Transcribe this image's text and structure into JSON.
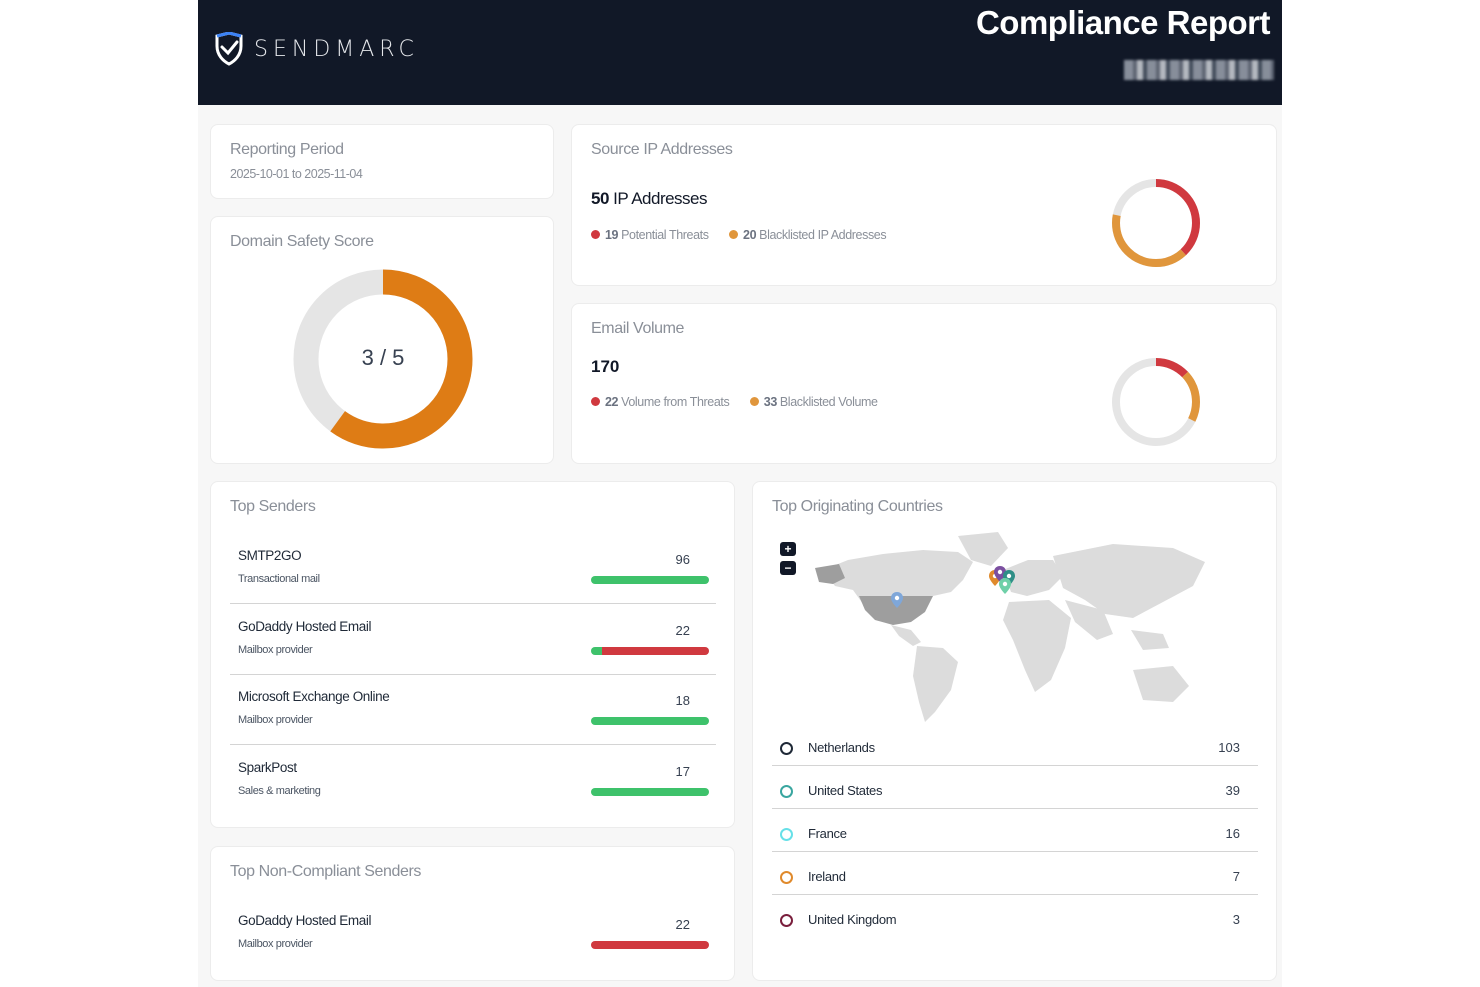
{
  "header": {
    "brand": "SENDMARC",
    "title": "Compliance Report"
  },
  "reporting_period": {
    "title": "Reporting Period",
    "range": "2025-10-01 to 2025-11-04"
  },
  "domain_safety": {
    "title": "Domain Safety Score",
    "score_text": "3 / 5",
    "score": 3,
    "max": 5
  },
  "source_ip": {
    "title": "Source IP Addresses",
    "total_number": "50",
    "total_label": "IP Addresses",
    "threats_count": "19",
    "threats_label": "Potential Threats",
    "blacklisted_count": "20",
    "blacklisted_label": "Blacklisted IP Addresses",
    "total": 50,
    "threats": 19,
    "blacklisted": 20
  },
  "email_volume": {
    "title": "Email Volume",
    "total_number": "170",
    "threats_count": "22",
    "threats_label": "Volume from Threats",
    "blacklisted_count": "33",
    "blacklisted_label": "Blacklisted Volume",
    "total": 170,
    "threats": 22,
    "blacklisted": 33
  },
  "top_senders": {
    "title": "Top Senders",
    "items": [
      {
        "name": "SMTP2GO",
        "type": "Transactional mail",
        "count": "96",
        "compliant_fraction": 1.0
      },
      {
        "name": "GoDaddy Hosted Email",
        "type": "Mailbox provider",
        "count": "22",
        "compliant_fraction": 0.09
      },
      {
        "name": "Microsoft Exchange Online",
        "type": "Mailbox provider",
        "count": "18",
        "compliant_fraction": 1.0
      },
      {
        "name": "SparkPost",
        "type": "Sales & marketing",
        "count": "17",
        "compliant_fraction": 1.0
      }
    ]
  },
  "top_non_compliant": {
    "title": "Top Non-Compliant Senders",
    "items": [
      {
        "name": "GoDaddy Hosted Email",
        "type": "Mailbox provider",
        "count": "22",
        "compliant_fraction": 0.0
      }
    ]
  },
  "top_countries": {
    "title": "Top Originating Countries",
    "zoom_in": "+",
    "zoom_out": "−",
    "items": [
      {
        "name": "Netherlands",
        "value": "103",
        "color": "#1f2937"
      },
      {
        "name": "United States",
        "value": "39",
        "color": "#3aa6a0"
      },
      {
        "name": "France",
        "value": "16",
        "color": "#67e0e8"
      },
      {
        "name": "Ireland",
        "value": "7",
        "color": "#e08a2c"
      },
      {
        "name": "United Kingdom",
        "value": "3",
        "color": "#7a1f3d"
      }
    ]
  },
  "colors": {
    "header_bg": "#111827",
    "orange": "#de7c15",
    "threat_red": "#d0393f",
    "blacklist_orange": "#e0963c",
    "compliant_green": "#3ec26b",
    "ring_gray": "#e5e5e5"
  }
}
